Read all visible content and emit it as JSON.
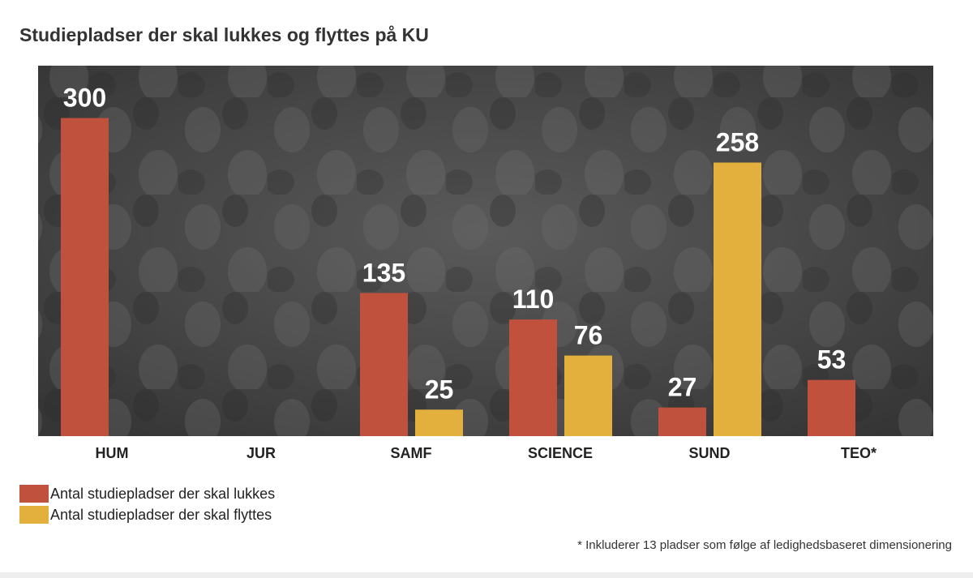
{
  "chart_data": {
    "type": "bar",
    "title": "Studiepladser der skal lukkes og flyttes på KU",
    "categories": [
      "HUM",
      "JUR",
      "SAMF",
      "SCIENCE",
      "SUND",
      "TEO*"
    ],
    "series": [
      {
        "name": "Antal studiepladser der skal lukkes",
        "color": "#c0513d",
        "values": [
          300,
          null,
          135,
          110,
          27,
          53
        ]
      },
      {
        "name": "Antal studiepladser der skal flyttes",
        "color": "#e3b03e",
        "values": [
          null,
          null,
          25,
          76,
          258,
          null
        ]
      }
    ],
    "ylim": [
      0,
      330
    ],
    "grid": false,
    "legend_position": "bottom-left",
    "footnote": "* Inkluderer 13 pladser som følge af ledighedsbaseret dimensionering",
    "background_color": "#3d3d3d",
    "label_color": "#ffffff"
  }
}
